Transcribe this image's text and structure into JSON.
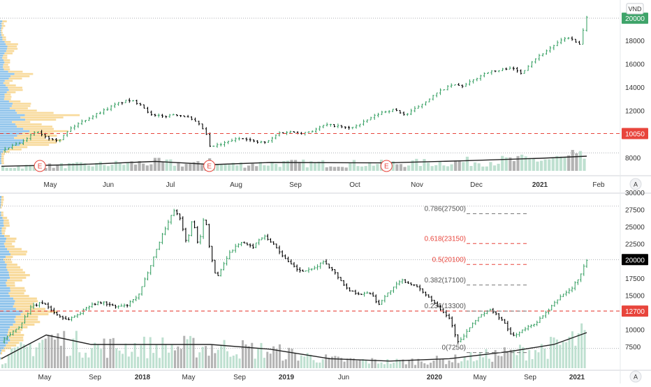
{
  "currency": "VND",
  "colors": {
    "up": "#3fa46a",
    "down": "#000000",
    "vol_blue": "#7ab8e8",
    "vol_orange": "#f7d48a",
    "support": "#e8453c",
    "last_price_green": "#3fa46a",
    "last_price_black": "#000000",
    "fib_red": "#e8453c",
    "fib_gray": "#777777",
    "ma": "#222222",
    "volume_bar": "#a8d5c0",
    "volume_bar_dark": "#9a9a9a"
  },
  "earnings_marker": "E",
  "corner_button": "A",
  "chart_data": [
    {
      "type": "candlestick",
      "pane": "top",
      "x_ticks": [
        "May",
        "Jun",
        "Jul",
        "Aug",
        "Sep",
        "Oct",
        "Nov",
        "Dec",
        "2021",
        "Feb"
      ],
      "bold_ticks": [
        "2021"
      ],
      "y_ticks": [
        8000,
        10000,
        12000,
        14000,
        16000,
        18000
      ],
      "ylim": [
        7400,
        20500
      ],
      "last_price_label": "20000",
      "support_label": "10050",
      "support_value": 10050,
      "path": [
        [
          0,
          8600
        ],
        [
          3,
          9000
        ],
        [
          6,
          9400
        ],
        [
          9,
          10300
        ],
        [
          12,
          9700
        ],
        [
          15,
          9500
        ],
        [
          18,
          10500
        ],
        [
          21,
          11100
        ],
        [
          24,
          11600
        ],
        [
          27,
          12100
        ],
        [
          30,
          12600
        ],
        [
          33,
          12900
        ],
        [
          36,
          12600
        ],
        [
          39,
          11600
        ],
        [
          42,
          11500
        ],
        [
          45,
          11700
        ],
        [
          48,
          11500
        ],
        [
          51,
          10900
        ],
        [
          53,
          10200
        ],
        [
          54,
          8900
        ],
        [
          57,
          9100
        ],
        [
          60,
          9500
        ],
        [
          63,
          9700
        ],
        [
          66,
          9300
        ],
        [
          69,
          9300
        ],
        [
          72,
          10100
        ],
        [
          75,
          10200
        ],
        [
          78,
          10100
        ],
        [
          81,
          10300
        ],
        [
          84,
          10800
        ],
        [
          87,
          10700
        ],
        [
          90,
          10500
        ],
        [
          93,
          10800
        ],
        [
          96,
          11400
        ],
        [
          99,
          11900
        ],
        [
          102,
          12100
        ],
        [
          105,
          11600
        ],
        [
          108,
          12300
        ],
        [
          111,
          13000
        ],
        [
          114,
          13700
        ],
        [
          117,
          14200
        ],
        [
          120,
          14100
        ],
        [
          123,
          14700
        ],
        [
          126,
          15300
        ],
        [
          129,
          15400
        ],
        [
          132,
          15700
        ],
        [
          135,
          15200
        ],
        [
          138,
          16300
        ],
        [
          141,
          17000
        ],
        [
          144,
          17700
        ],
        [
          147,
          18300
        ],
        [
          149,
          17900
        ],
        [
          150,
          17500
        ],
        [
          151,
          18800
        ],
        [
          152,
          19900
        ]
      ],
      "volume": {
        "ma_path": [
          [
            0,
            0.22
          ],
          [
            20,
            0.3
          ],
          [
            40,
            0.45
          ],
          [
            55,
            0.3
          ],
          [
            70,
            0.4
          ],
          [
            100,
            0.38
          ],
          [
            120,
            0.48
          ],
          [
            140,
            0.6
          ],
          [
            152,
            0.7
          ]
        ],
        "spikes": [
          [
            54,
            0.6
          ],
          [
            148,
            1.0
          ]
        ]
      },
      "earnings_at": [
        10,
        54,
        100
      ]
    },
    {
      "type": "candlestick",
      "pane": "bottom",
      "x_ticks": [
        "May",
        "Sep",
        "2018",
        "May",
        "Sep",
        "2019",
        "Jun",
        "2020",
        "May",
        "Sep",
        "2021"
      ],
      "bold_ticks": [
        "2018",
        "2019",
        "2020",
        "2021"
      ],
      "y_ticks": [
        7500,
        10000,
        12500,
        15000,
        17500,
        20000,
        22500,
        25000,
        27500,
        30000
      ],
      "ylim": [
        6200,
        30500
      ],
      "last_price_label": "20000",
      "support_label": "12700",
      "support_value": 12700,
      "fibonacci": [
        {
          "label": "0.786(27500)",
          "value": 27500,
          "color": "gray"
        },
        {
          "label": "0.618(23150)",
          "value": 23150,
          "color": "red"
        },
        {
          "label": "0.5(20100)",
          "value": 20100,
          "color": "red"
        },
        {
          "label": "0.382(17100)",
          "value": 17100,
          "color": "gray"
        },
        {
          "label": "0.236(13300)",
          "value": 13300,
          "color": "gray"
        },
        {
          "label": "0(7250)",
          "value": 7250,
          "color": "gray"
        }
      ],
      "path": [
        [
          0,
          8200
        ],
        [
          6,
          10500
        ],
        [
          10,
          13300
        ],
        [
          14,
          14000
        ],
        [
          18,
          12300
        ],
        [
          22,
          11400
        ],
        [
          26,
          12300
        ],
        [
          30,
          13700
        ],
        [
          34,
          14000
        ],
        [
          38,
          13300
        ],
        [
          42,
          13500
        ],
        [
          46,
          15000
        ],
        [
          50,
          19500
        ],
        [
          54,
          24000
        ],
        [
          58,
          27600
        ],
        [
          60,
          26000
        ],
        [
          62,
          22500
        ],
        [
          64,
          26200
        ],
        [
          66,
          22000
        ],
        [
          68,
          27000
        ],
        [
          70,
          21000
        ],
        [
          72,
          17400
        ],
        [
          76,
          21000
        ],
        [
          80,
          22800
        ],
        [
          84,
          22000
        ],
        [
          88,
          23800
        ],
        [
          92,
          22000
        ],
        [
          96,
          19800
        ],
        [
          100,
          18500
        ],
        [
          104,
          18700
        ],
        [
          108,
          20000
        ],
        [
          112,
          18100
        ],
        [
          116,
          15800
        ],
        [
          120,
          15200
        ],
        [
          124,
          15300
        ],
        [
          126,
          13600
        ],
        [
          130,
          15600
        ],
        [
          134,
          17200
        ],
        [
          138,
          16500
        ],
        [
          142,
          15200
        ],
        [
          146,
          13500
        ],
        [
          150,
          11700
        ],
        [
          153,
          8000
        ],
        [
          156,
          9800
        ],
        [
          160,
          12000
        ],
        [
          164,
          12900
        ],
        [
          168,
          11200
        ],
        [
          171,
          9000
        ],
        [
          175,
          10000
        ],
        [
          179,
          11000
        ],
        [
          183,
          12700
        ],
        [
          187,
          14800
        ],
        [
          191,
          16000
        ],
        [
          194,
          18000
        ],
        [
          196,
          20200
        ]
      ],
      "volume": {
        "ma_path": [
          [
            0,
            0.2
          ],
          [
            15,
            0.7
          ],
          [
            30,
            0.5
          ],
          [
            50,
            0.5
          ],
          [
            70,
            0.5
          ],
          [
            90,
            0.4
          ],
          [
            110,
            0.2
          ],
          [
            130,
            0.15
          ],
          [
            150,
            0.2
          ],
          [
            170,
            0.35
          ],
          [
            185,
            0.5
          ],
          [
            196,
            0.75
          ]
        ]
      }
    }
  ]
}
